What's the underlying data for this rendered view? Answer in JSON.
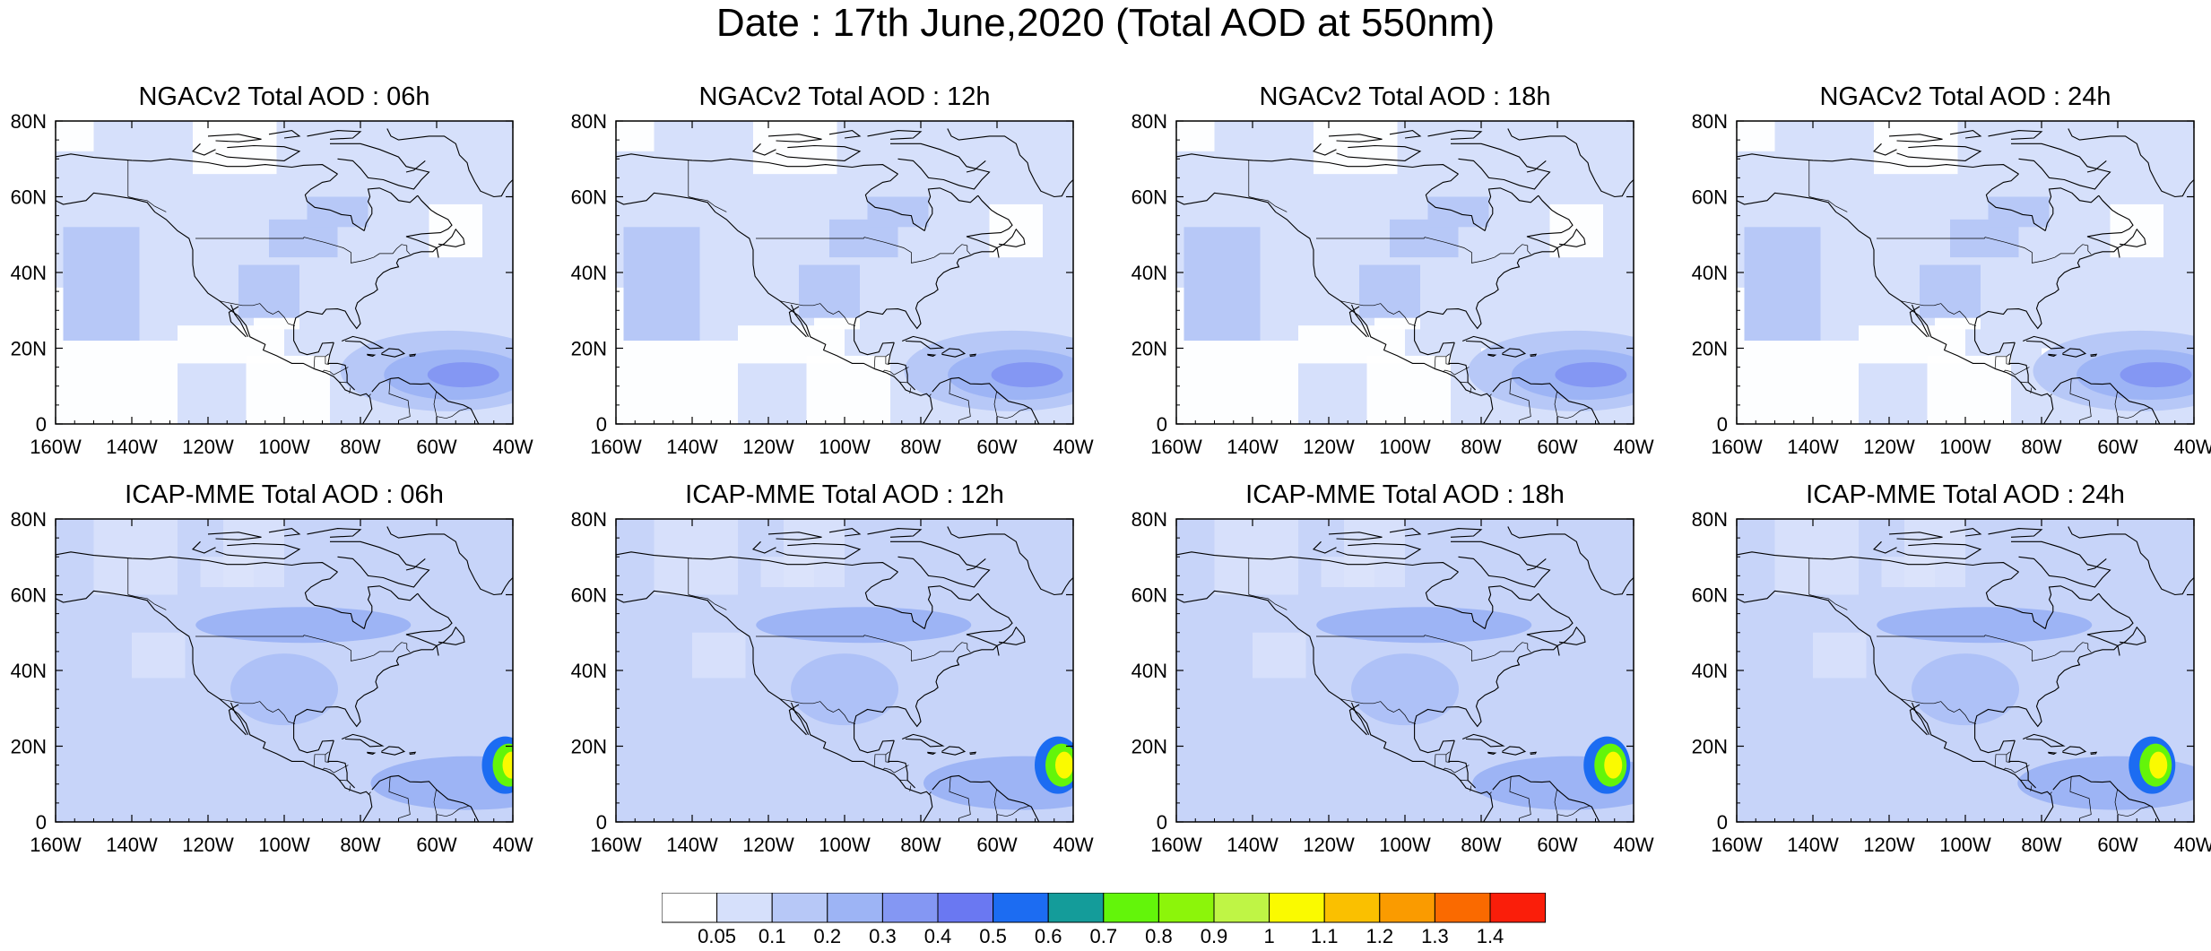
{
  "main_title": "Date : 17th June,2020 (Total AOD at 550nm)",
  "x_ticks": [
    "160W",
    "140W",
    "120W",
    "100W",
    "80W",
    "60W",
    "40W"
  ],
  "y_ticks": [
    "80N",
    "60N",
    "40N",
    "20N",
    "0"
  ],
  "panels": [
    {
      "title": "NGACv2 Total AOD : 06h",
      "model": "NGACv2",
      "lead": "06h"
    },
    {
      "title": "NGACv2 Total AOD : 12h",
      "model": "NGACv2",
      "lead": "12h"
    },
    {
      "title": "NGACv2 Total AOD : 18h",
      "model": "NGACv2",
      "lead": "18h"
    },
    {
      "title": "NGACv2 Total AOD : 24h",
      "model": "NGACv2",
      "lead": "24h"
    },
    {
      "title": "ICAP-MME Total AOD : 06h",
      "model": "ICAP-MME",
      "lead": "06h"
    },
    {
      "title": "ICAP-MME Total AOD : 12h",
      "model": "ICAP-MME",
      "lead": "12h"
    },
    {
      "title": "ICAP-MME Total AOD : 18h",
      "model": "ICAP-MME",
      "lead": "18h"
    },
    {
      "title": "ICAP-MME Total AOD : 24h",
      "model": "ICAP-MME",
      "lead": "24h"
    }
  ],
  "colorbar": {
    "labels": [
      "0.05",
      "0.1",
      "0.2",
      "0.3",
      "0.4",
      "0.5",
      "0.6",
      "0.7",
      "0.8",
      "0.9",
      "1",
      "1.1",
      "1.2",
      "1.3",
      "1.4"
    ],
    "colors": [
      "#ffffff",
      "#d6e0fb",
      "#b7c8f7",
      "#9db4f5",
      "#8497f3",
      "#6a78f2",
      "#1c6cf2",
      "#149c9a",
      "#63f50a",
      "#8cf50a",
      "#bff545",
      "#fafa00",
      "#fac000",
      "#fa9b00",
      "#fa6a00",
      "#fa1e0a"
    ]
  },
  "map_colors": {
    "land_line": "#000000",
    "level1": "#d6e0fb",
    "level2": "#b7c8f7",
    "level3": "#9db4f5",
    "level4": "#8497f3"
  }
}
